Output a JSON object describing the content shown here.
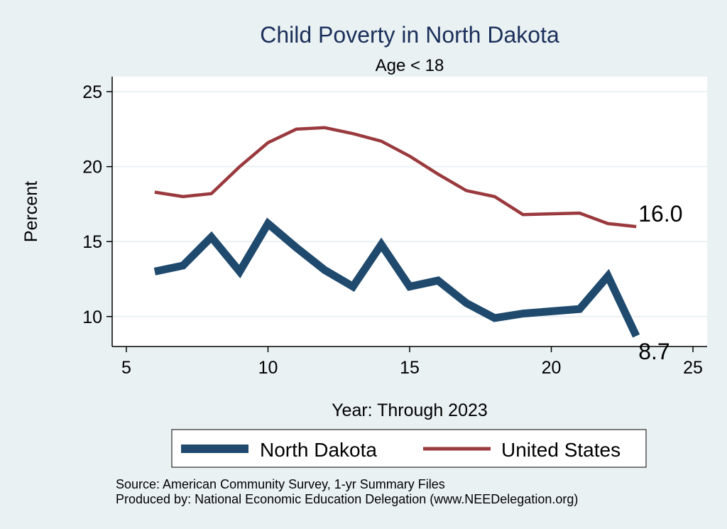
{
  "chart_data": {
    "type": "line",
    "title": "Child Poverty in North Dakota",
    "subtitle": "Age < 18",
    "xlabel": "Year: Through 2023",
    "ylabel": "Percent",
    "xlim": [
      4.5,
      25.5
    ],
    "ylim": [
      8,
      26
    ],
    "xticks": [
      5,
      10,
      15,
      20,
      25
    ],
    "yticks": [
      10,
      15,
      20,
      25
    ],
    "grid": true,
    "legend_position": "bottom",
    "series": [
      {
        "name": "North Dakota",
        "color": "#1f4a6e",
        "x": [
          6,
          7,
          8,
          9,
          10,
          11,
          12,
          13,
          14,
          15,
          16,
          17,
          18,
          19,
          21,
          22,
          23
        ],
        "y": [
          13.0,
          13.4,
          15.3,
          13.0,
          16.2,
          14.6,
          13.1,
          12.0,
          14.8,
          12.0,
          12.4,
          10.9,
          9.9,
          10.2,
          10.5,
          12.7,
          8.7
        ],
        "end_label": "8.7"
      },
      {
        "name": "United States",
        "color": "#9a3a3e",
        "x": [
          6,
          7,
          8,
          9,
          10,
          11,
          12,
          13,
          14,
          15,
          16,
          17,
          18,
          19,
          21,
          22,
          23
        ],
        "y": [
          18.3,
          18.0,
          18.2,
          20.0,
          21.6,
          22.5,
          22.6,
          22.2,
          21.7,
          20.7,
          19.5,
          18.4,
          18.0,
          16.8,
          16.9,
          16.2,
          16.0
        ],
        "end_label": "16.0"
      }
    ],
    "notes": [
      "Source: American Community Survey, 1-yr Summary Files",
      "Produced by: National Economic Education Delegation (www.NEEDelegation.org)"
    ]
  }
}
